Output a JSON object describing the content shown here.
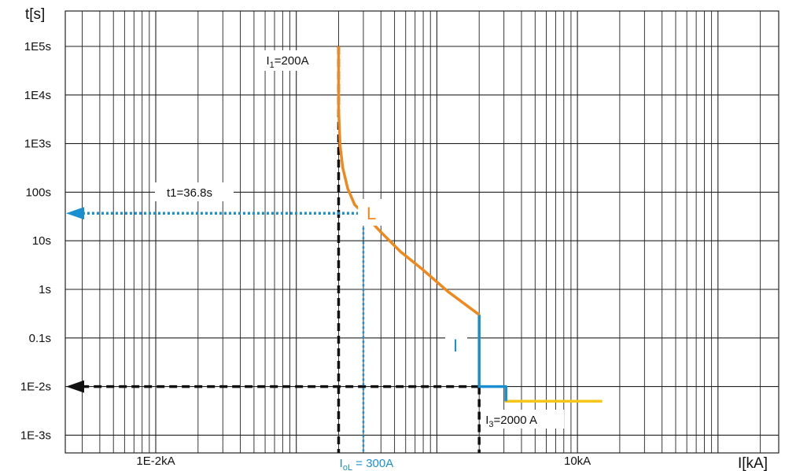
{
  "chart_data": {
    "type": "line",
    "title": "",
    "xlabel": "I[kA]",
    "ylabel": "t[s]",
    "x_scale": "log",
    "y_scale": "log",
    "y_ticks": [
      {
        "value": 100000,
        "label": "1E5s"
      },
      {
        "value": 10000,
        "label": "1E4s"
      },
      {
        "value": 1000,
        "label": "1E3s"
      },
      {
        "value": 100,
        "label": "100s"
      },
      {
        "value": 10,
        "label": "10s"
      },
      {
        "value": 1,
        "label": "1s"
      },
      {
        "value": 0.1,
        "label": "0.1s"
      },
      {
        "value": 0.01,
        "label": "1E-2s"
      },
      {
        "value": 0.001,
        "label": "1E-3s"
      }
    ],
    "x_ticks": [
      {
        "value": 0.01,
        "label": "1E-2kA"
      },
      {
        "value": 10,
        "label": "10kA"
      }
    ],
    "grid": true,
    "series": [
      {
        "name": "L",
        "color": "#f0881c",
        "x": [
          0.2,
          0.2,
          0.205,
          0.214,
          0.232,
          0.26,
          0.3,
          0.4,
          0.55,
          0.8,
          1.2,
          2.0
        ],
        "y": [
          100000,
          5000,
          900,
          320,
          120,
          55,
          36.8,
          15,
          6,
          2.5,
          0.9,
          0.3
        ]
      },
      {
        "name": "I",
        "color": "#1a8fd0",
        "x": [
          2.0,
          2.0,
          3.1,
          3.1
        ],
        "y": [
          0.3,
          0.01,
          0.01,
          0.005
        ]
      },
      {
        "name": "",
        "color": "#f5c518",
        "x": [
          3.1,
          3.1,
          15
        ],
        "y": [
          0.01,
          0.005,
          0.005
        ]
      }
    ],
    "annotations": {
      "i1": {
        "prefix": "I",
        "sub": "1",
        "suffix": "=200A",
        "x": 0.2
      },
      "iol": {
        "prefix": "I",
        "sub": "oL",
        "suffix": " = 300A",
        "x": 0.3
      },
      "i3": {
        "prefix": "I",
        "sub": "3",
        "suffix": "=2000 A",
        "x": 2.0
      },
      "t1": {
        "text": "t1=36.8s",
        "y": 36.8
      },
      "t2": {
        "y": 0.01
      },
      "label_L": "L",
      "label_I": "I"
    }
  }
}
